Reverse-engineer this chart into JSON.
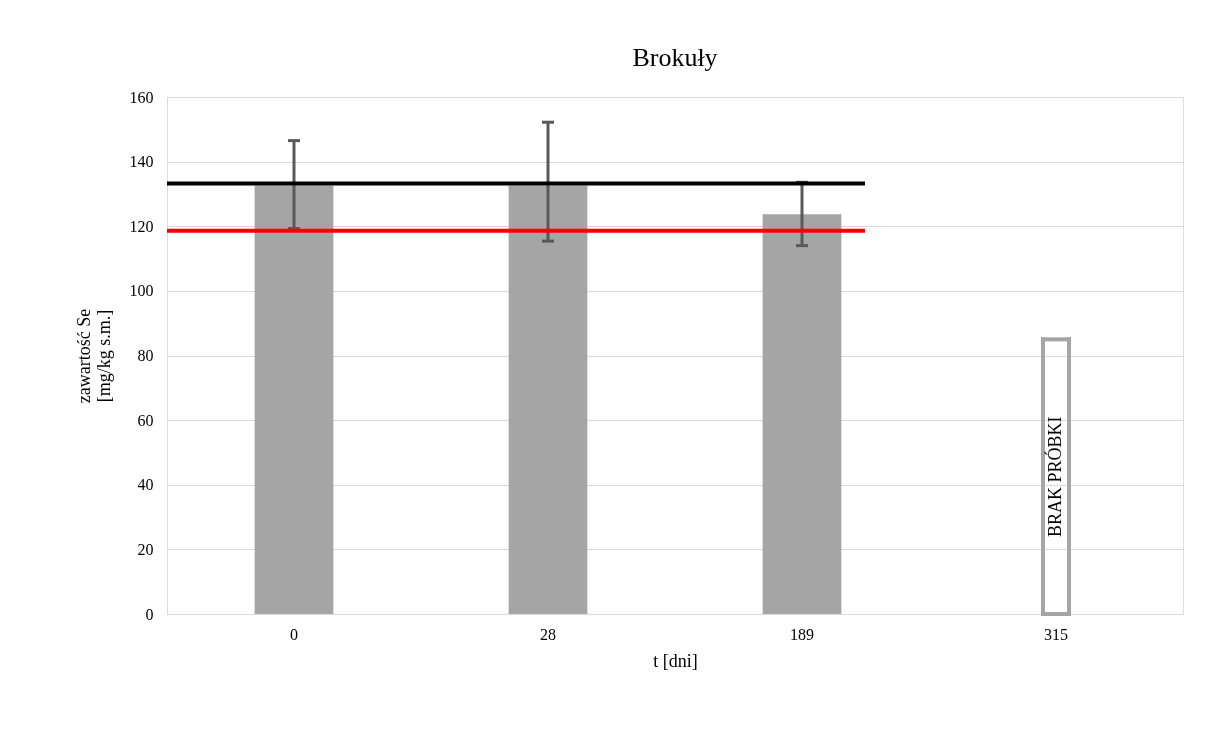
{
  "chart_data": {
    "type": "bar",
    "title": "Brokuły",
    "xlabel": "t [dni]",
    "ylabel": "zawartość Se\n[mg/kg s.m.]",
    "categories": [
      "0",
      "28",
      "189",
      "315"
    ],
    "values": [
      132.6,
      132.6,
      123.7,
      null
    ],
    "color": "#a5a5a5",
    "errors": [
      [
        119.3,
        146.5
      ],
      [
        115.4,
        152.2
      ],
      [
        114.0,
        133.6
      ],
      null
    ],
    "ylim": [
      0,
      160
    ],
    "yticks": [
      0,
      20,
      40,
      60,
      80,
      100,
      120,
      140,
      160
    ],
    "grid": "y",
    "ref_lines": [
      {
        "axis": "y",
        "value": 133.2,
        "color": "#000000"
      },
      {
        "axis": "y",
        "value": 118.6,
        "color": "#ff0000"
      }
    ],
    "annotations": [
      "BRAK PRÓBKI"
    ]
  }
}
